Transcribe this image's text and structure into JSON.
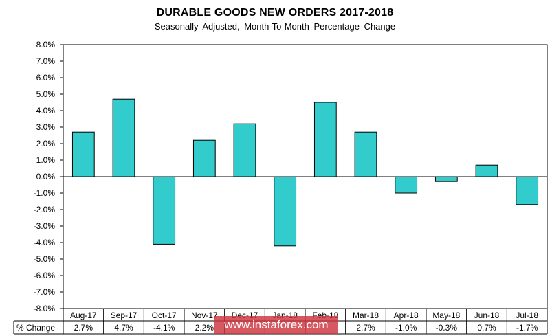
{
  "chart_data": {
    "type": "bar",
    "title": "DURABLE GOODS NEW ORDERS 2017-2018",
    "subtitle": "Seasonally Adjusted,  Month-To-Month  Percentage  Change",
    "categories": [
      "Aug-17",
      "Sep-17",
      "Oct-17",
      "Nov-17",
      "Dec-17",
      "Jan-18",
      "Feb-18",
      "Mar-18",
      "Apr-18",
      "May-18",
      "Jun-18",
      "Jul-18"
    ],
    "values": [
      2.7,
      4.7,
      -4.1,
      2.2,
      3.2,
      -4.2,
      4.5,
      2.7,
      -1.0,
      -0.3,
      0.7,
      -1.7
    ],
    "table_row_label": "% Change",
    "table_values": [
      "2.7%",
      "4.7%",
      "-4.1%",
      "2.2%",
      "",
      "",
      "",
      "2.7%",
      "-1.0%",
      "-0.3%",
      "0.7%",
      "-1.7%"
    ],
    "ylim": [
      -8,
      8
    ],
    "yticks": [
      "8.0%",
      "7.0%",
      "6.0%",
      "5.0%",
      "4.0%",
      "3.0%",
      "2.0%",
      "1.0%",
      "0.0%",
      "-1.0%",
      "-2.0%",
      "-3.0%",
      "-4.0%",
      "-5.0%",
      "-6.0%",
      "-7.0%",
      "-8.0%"
    ],
    "xlabel": "",
    "ylabel": "",
    "bar_color": "#33cccc",
    "watermark": "www.instaforex.com"
  }
}
